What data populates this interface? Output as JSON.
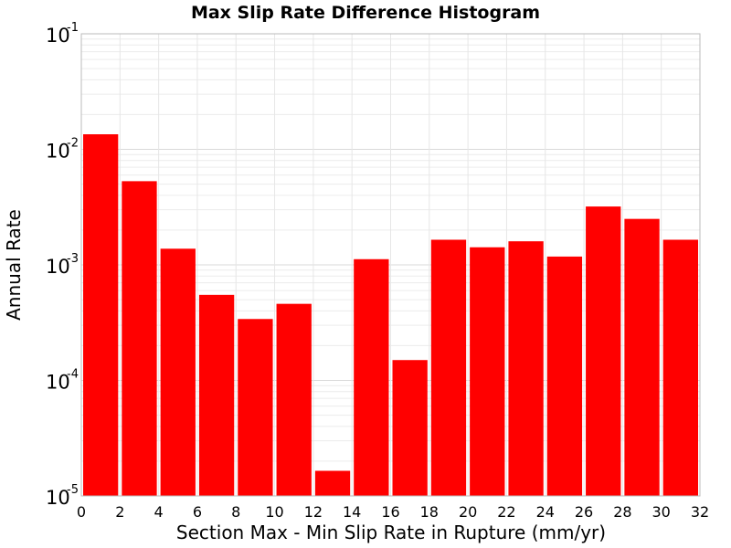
{
  "chart_data": {
    "type": "bar",
    "title": "Max Slip Rate Difference Histogram",
    "xlabel": "Section Max - Min Slip Rate in Rupture (mm/yr)",
    "ylabel": "Annual Rate",
    "xlim": [
      0,
      32
    ],
    "ylim": [
      1e-05,
      0.1
    ],
    "yscale": "log",
    "bar_width": 2,
    "bar_color": "#ff0000",
    "grid": true,
    "x_ticks": [
      "0",
      "2",
      "4",
      "6",
      "8",
      "10",
      "12",
      "14",
      "16",
      "18",
      "20",
      "22",
      "24",
      "26",
      "28",
      "30",
      "32"
    ],
    "y_ticks": [
      {
        "base": "10",
        "exp": "-5",
        "value": 1e-05
      },
      {
        "base": "10",
        "exp": "-4",
        "value": 0.0001
      },
      {
        "base": "10",
        "exp": "-3",
        "value": 0.001
      },
      {
        "base": "10",
        "exp": "-2",
        "value": 0.01
      },
      {
        "base": "10",
        "exp": "-1",
        "value": 0.1
      }
    ],
    "bins": [
      0,
      2,
      4,
      6,
      8,
      10,
      12,
      14,
      16,
      18,
      20,
      22,
      24,
      26,
      28,
      30
    ],
    "values": [
      0.0135,
      0.0053,
      0.00138,
      0.00055,
      0.00034,
      0.00046,
      1.65e-05,
      0.00112,
      0.00015,
      0.00165,
      0.00142,
      0.0016,
      0.00118,
      0.0032,
      0.0025,
      0.00165
    ]
  }
}
